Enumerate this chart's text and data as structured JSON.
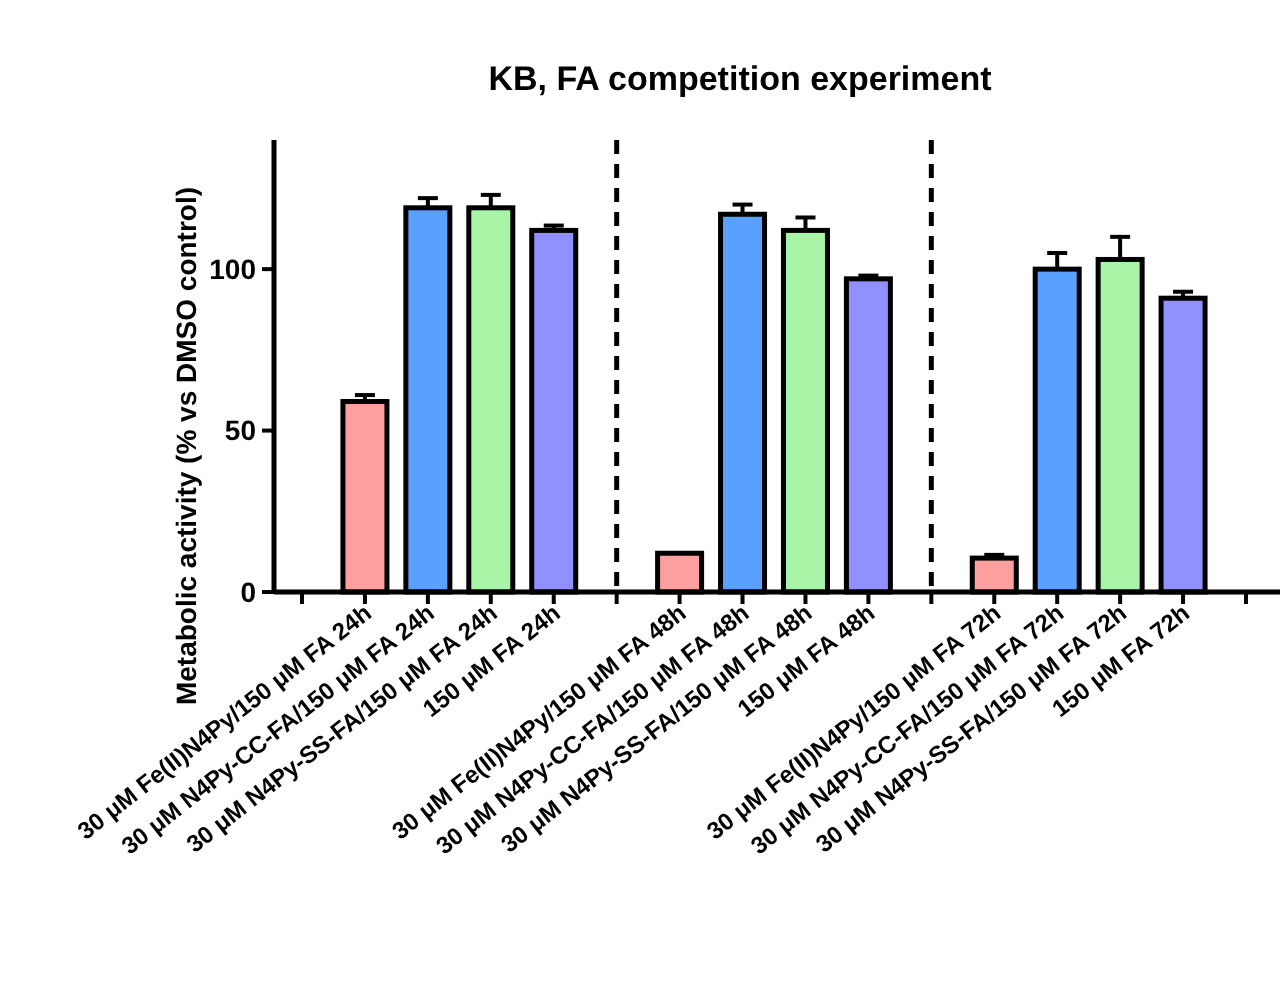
{
  "chart_data": {
    "type": "bar",
    "title": "KB, FA competition experiment",
    "ylabel": "Metabolic activity (% vs DMSO control)",
    "categories": [
      null,
      "30 μM Fe(II)N4Py/150 μM FA 24h",
      "30 μM N4Py-CC-FA/150 μM FA 24h",
      "30 μM N4Py-SS-FA/150 μM FA 24h",
      "150 μM FA 24h",
      null,
      "30 μM Fe(II)N4Py/150 μM FA 48h",
      "30 μM N4Py-CC-FA/150 μM FA 48h",
      "30 μM N4Py-SS-FA/150 μM FA 48h",
      "150 μM FA 48h",
      null,
      "30 μM Fe(II)N4Py/150 μM FA 72h",
      "30 μM N4Py-CC-FA/150 μM FA 72h",
      "30 μM N4Py-SS-FA/150 μM FA 72h",
      "150 μM FA 72h",
      null
    ],
    "values": [
      null,
      59,
      119,
      119,
      112,
      null,
      12,
      117,
      112,
      97,
      null,
      10.5,
      100,
      103,
      91,
      null
    ],
    "errors": [
      null,
      2,
      3,
      4,
      1.5,
      null,
      null,
      3,
      4,
      1,
      null,
      1,
      5,
      7,
      2,
      null
    ],
    "colors": [
      null,
      "#ff9f9f",
      "#5aa0ff",
      "#a8f5a8",
      "#9090ff",
      null,
      "#ff9f9f",
      "#5aa0ff",
      "#a8f5a8",
      "#9090ff",
      null,
      "#ff9f9f",
      "#5aa0ff",
      "#a8f5a8",
      "#9090ff",
      null
    ],
    "ylim": [
      0,
      140
    ],
    "yticks": [
      0,
      50,
      100
    ]
  }
}
